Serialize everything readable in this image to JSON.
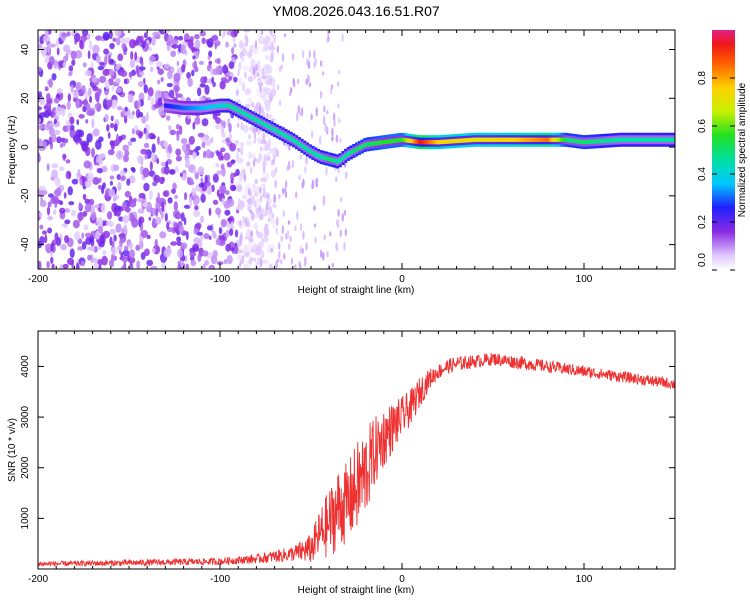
{
  "title": "YM08.2026.043.16.51.R07",
  "chart_data": [
    {
      "type": "heatmap",
      "name": "spectrogram",
      "xlabel": "Height of straight line (km)",
      "ylabel": "Frequency (Hz)",
      "xlim": [
        -200,
        150
      ],
      "ylim": [
        -50,
        48
      ],
      "xticks": [
        -200,
        -100,
        0,
        100
      ],
      "xtick_labels": [
        "-200",
        "-100",
        "0",
        "100"
      ],
      "yticks": [
        -40,
        -20,
        0,
        20,
        40
      ],
      "ytick_labels": [
        "-40",
        "-20",
        "0",
        "20",
        "40"
      ],
      "colorbar": {
        "label": "Normalized spectral amplitude",
        "range": [
          0.0,
          1.0
        ],
        "ticks": [
          0.0,
          0.2,
          0.4,
          0.6,
          0.8
        ],
        "tick_labels": [
          "0.0",
          "0.2",
          "0.4",
          "0.6",
          "0.8"
        ]
      },
      "ridge": {
        "x": [
          -130,
          -120,
          -110,
          -100,
          -95,
          -90,
          -80,
          -70,
          -60,
          -50,
          -45,
          -40,
          -35,
          -30,
          -25,
          -20,
          -10,
          0,
          10,
          20,
          40,
          60,
          80,
          90,
          100,
          120,
          150
        ],
        "y": [
          17,
          16,
          16,
          17,
          17,
          15,
          11,
          7,
          3,
          -2,
          -4,
          -5,
          -6,
          -3,
          -1,
          1,
          2,
          3,
          2,
          2,
          3,
          3,
          3,
          3,
          2,
          3,
          3
        ],
        "amplitude": [
          0.25,
          0.3,
          0.35,
          0.4,
          0.45,
          0.45,
          0.45,
          0.45,
          0.45,
          0.45,
          0.45,
          0.5,
          0.45,
          0.45,
          0.5,
          0.5,
          0.55,
          0.55,
          0.95,
          0.75,
          0.7,
          0.75,
          0.85,
          0.5,
          0.5,
          0.45,
          0.45
        ]
      },
      "noise_region": {
        "x_range": [
          -200,
          -90
        ],
        "amplitude": [
          0.05,
          0.2
        ]
      }
    },
    {
      "type": "line",
      "name": "snr",
      "xlabel": "Height of straight line (km)",
      "ylabel": "SNR (10 * v/v)",
      "xlim": [
        -200,
        150
      ],
      "ylim": [
        0,
        4700
      ],
      "xticks": [
        -200,
        -100,
        0,
        100
      ],
      "xtick_labels": [
        "-200",
        "-100",
        "0",
        "100"
      ],
      "yticks": [
        1000,
        2000,
        3000,
        4000
      ],
      "ytick_labels": [
        "1000",
        "2000",
        "3000",
        "4000"
      ],
      "series": [
        {
          "name": "SNR",
          "color": "#f03030",
          "x": [
            -200,
            -150,
            -100,
            -80,
            -60,
            -50,
            -45,
            -40,
            -35,
            -30,
            -25,
            -20,
            -15,
            -10,
            -5,
            0,
            5,
            10,
            15,
            20,
            25,
            30,
            40,
            50,
            60,
            70,
            80,
            90,
            100,
            110,
            120,
            130,
            140,
            150
          ],
          "y": [
            100,
            120,
            150,
            200,
            300,
            400,
            700,
            900,
            1200,
            1300,
            1600,
            1900,
            2300,
            2600,
            2800,
            3000,
            3200,
            3500,
            3750,
            3900,
            4000,
            4050,
            4100,
            4150,
            4100,
            4050,
            4000,
            3950,
            3900,
            3850,
            3800,
            3750,
            3700,
            3650
          ],
          "noise": [
            50,
            60,
            70,
            90,
            150,
            300,
            500,
            700,
            800,
            800,
            900,
            900,
            700,
            600,
            500,
            400,
            350,
            300,
            200,
            150,
            150,
            150,
            130,
            130,
            130,
            130,
            120,
            120,
            120,
            110,
            110,
            110,
            110,
            110
          ]
        }
      ]
    }
  ],
  "colors": {
    "axis": "#000000",
    "snr_line": "#f03030"
  }
}
